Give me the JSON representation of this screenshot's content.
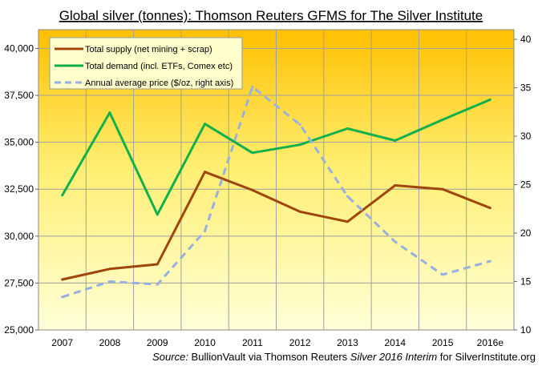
{
  "chart_data": {
    "type": "line",
    "title": "Global silver (tonnes): Thomson Reuters GFMS for The Silver Institute",
    "categories": [
      "2007",
      "2008",
      "2009",
      "2010",
      "2011",
      "2012",
      "2013",
      "2014",
      "2015",
      "2016e"
    ],
    "series": [
      {
        "name": "Total supply (net mining + scrap)",
        "axis": "left",
        "color": "#A0460A",
        "dashed": false,
        "values": [
          27690,
          28250,
          28500,
          33420,
          32450,
          31300,
          30770,
          32700,
          32500,
          31500
        ]
      },
      {
        "name": "Total demand (incl. ETFs, Comex etc)",
        "axis": "left",
        "color": "#12B04A",
        "dashed": false,
        "values": [
          32180,
          36580,
          31150,
          35980,
          34440,
          34870,
          35730,
          35090,
          36200,
          37270
        ]
      },
      {
        "name": "Annual average price ($/oz, right axis)",
        "axis": "right",
        "color": "#98B0E0",
        "dashed": true,
        "values": [
          13.4,
          15.0,
          14.7,
          20.2,
          35.1,
          31.2,
          23.8,
          19.1,
          15.7,
          17.1
        ]
      }
    ],
    "ylim": [
      25000,
      41000
    ],
    "y_ticks": [
      25000,
      27500,
      30000,
      32500,
      35000,
      37500,
      40000
    ],
    "y_tick_labels": [
      "25,000",
      "27,500",
      "30,000",
      "32,500",
      "35,000",
      "37,500",
      "40,000"
    ],
    "y2lim": [
      10,
      41
    ],
    "y2_ticks": [
      10,
      15,
      20,
      25,
      30,
      35,
      40
    ],
    "y2_tick_labels": [
      "10",
      "15",
      "20",
      "25",
      "30",
      "35",
      "40"
    ],
    "grid": true,
    "legend": "top-left",
    "source": {
      "prefix": "Source:",
      "text1": " BullionVault via Thomson Reuters ",
      "italic": "Silver 2016 Interim",
      "text2": " for SilverInstitute.org"
    }
  }
}
